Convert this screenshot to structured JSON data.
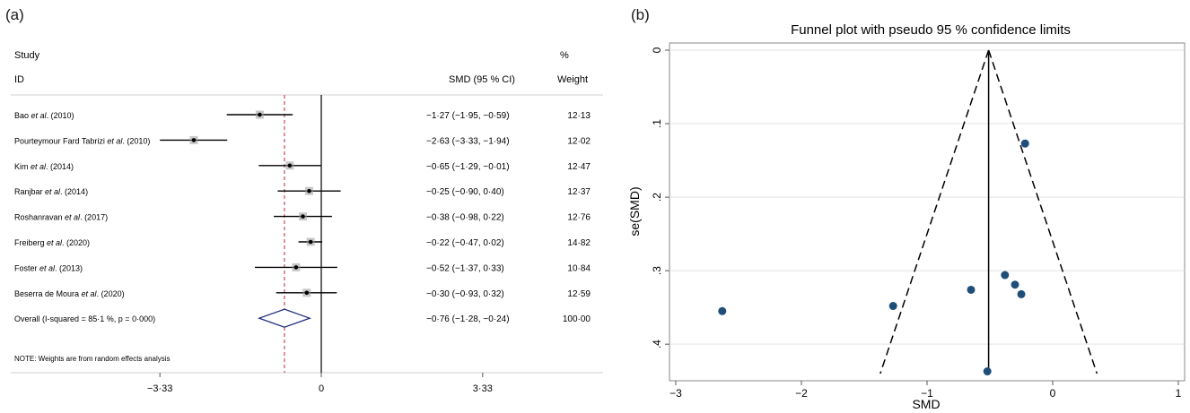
{
  "panels": {
    "left_label": "(a)",
    "right_label": "(b)"
  },
  "forest": {
    "header": {
      "study": "Study",
      "id": "ID",
      "smd": "SMD (95 % CI)",
      "pct": "%",
      "weight": "Weight"
    },
    "note": "NOTE: Weights are from random effects analysis",
    "x_ticks": [
      {
        "value": -3.33,
        "label": "−3·33"
      },
      {
        "value": 0,
        "label": "0"
      },
      {
        "value": 3.33,
        "label": "3·33"
      }
    ],
    "overall_line": -0.76,
    "colors": {
      "diamond": "#1f2a7a",
      "ref_line": "#c0394b",
      "box": "#9a9a9a"
    }
  },
  "chart_data": [
    {
      "type": "forest",
      "studies": [
        {
          "pre": "Bao ",
          "etal": "et al",
          "post": ". (2010)",
          "smd": -1.27,
          "lo": -1.95,
          "hi": -0.59,
          "ci_text": "−1·27 (−1·95, −0·59)",
          "weight": "12·13"
        },
        {
          "pre": "Pourteymour Fard Tabrizi ",
          "etal": "et al",
          "post": ". (2010)",
          "smd": -2.63,
          "lo": -3.33,
          "hi": -1.94,
          "ci_text": "−2·63 (−3·33, −1·94)",
          "weight": "12·02"
        },
        {
          "pre": "Kim ",
          "etal": "et al",
          "post": ". (2014)",
          "smd": -0.65,
          "lo": -1.29,
          "hi": -0.01,
          "ci_text": "−0·65 (−1·29, −0·01)",
          "weight": "12·47"
        },
        {
          "pre": "Ranjbar ",
          "etal": "et al",
          "post": ". (2014)",
          "smd": -0.25,
          "lo": -0.9,
          "hi": 0.4,
          "ci_text": "−0·25 (−0·90, 0·40)",
          "weight": "12·37"
        },
        {
          "pre": "Roshanravan ",
          "etal": "et al",
          "post": ". (2017)",
          "smd": -0.38,
          "lo": -0.98,
          "hi": 0.22,
          "ci_text": "−0·38 (−0·98, 0·22)",
          "weight": "12·76"
        },
        {
          "pre": "Freiberg ",
          "etal": "et al",
          "post": ". (2020)",
          "smd": -0.22,
          "lo": -0.47,
          "hi": 0.02,
          "ci_text": "−0·22 (−0·47, 0·02)",
          "weight": "14·82"
        },
        {
          "pre": "Foster ",
          "etal": "et al",
          "post": ". (2013)",
          "smd": -0.52,
          "lo": -1.37,
          "hi": 0.33,
          "ci_text": "−0·52 (−1·37, 0·33)",
          "weight": "10·84"
        },
        {
          "pre": "Beserra de Moura ",
          "etal": "et al",
          "post": ". (2020)",
          "smd": -0.3,
          "lo": -0.93,
          "hi": 0.32,
          "ci_text": "−0·30 (−0·93, 0·32)",
          "weight": "12·59"
        }
      ],
      "overall": {
        "label": "Overall  (I-squared = 85·1 %, p = 0·000)",
        "smd": -0.76,
        "lo": -1.28,
        "hi": -0.24,
        "ci_text": "−0·76 (−1·28, −0·24)",
        "weight": "100·00"
      },
      "xlim": [
        -5.3,
        3.9
      ]
    },
    {
      "type": "scatter",
      "title": "Funnel plot with pseudo 95 % confidence limits",
      "xlabel": "SMD",
      "ylabel": "se(SMD)",
      "xlim": [
        -3.05,
        1.05
      ],
      "ylim": [
        0,
        0.44
      ],
      "y_reversed": true,
      "grid": true,
      "x_ticks": [
        {
          "value": -3,
          "label": "−3"
        },
        {
          "value": -2,
          "label": "−2"
        },
        {
          "value": -1,
          "label": "−1"
        },
        {
          "value": 0,
          "label": "0"
        },
        {
          "value": 1,
          "label": "1"
        }
      ],
      "y_ticks": [
        {
          "value": 0,
          "label": "0"
        },
        {
          "value": 0.1,
          "label": ".1"
        },
        {
          "value": 0.2,
          "label": ".2"
        },
        {
          "value": 0.3,
          "label": ".3"
        },
        {
          "value": 0.4,
          "label": ".4"
        }
      ],
      "points": [
        {
          "x": -2.63,
          "y": 0.355
        },
        {
          "x": -1.27,
          "y": 0.348
        },
        {
          "x": -0.65,
          "y": 0.326
        },
        {
          "x": -0.52,
          "y": 0.437
        },
        {
          "x": -0.38,
          "y": 0.306
        },
        {
          "x": -0.3,
          "y": 0.319
        },
        {
          "x": -0.25,
          "y": 0.332
        },
        {
          "x": -0.22,
          "y": 0.127
        }
      ],
      "pooled_smd": -0.51,
      "ci_lines": {
        "se_max": 0.44,
        "z": 1.96
      },
      "colors": {
        "point": "#1f4e79",
        "grid": "#e3e3e3"
      }
    }
  ]
}
